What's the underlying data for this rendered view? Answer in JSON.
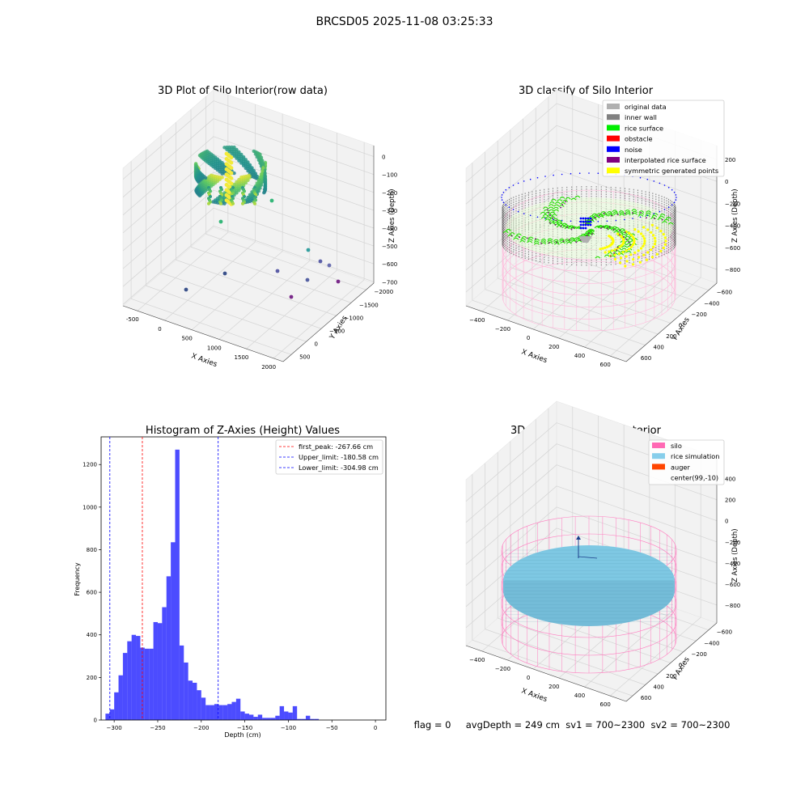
{
  "suptitle": "BRCSD05 2025-11-08 03:25:33",
  "panels": {
    "raw": {
      "title": "3D Plot of Silo Interior(row data)",
      "x_label": "X Axies",
      "y_label": "Y Axies",
      "z_label": "Z Axies (Depth)",
      "x_ticks": [
        "-500",
        "0",
        "500",
        "1000",
        "1500",
        "2000"
      ],
      "y_ticks": [
        "500",
        "0",
        "−500",
        "−1000",
        "−1500",
        "−2000"
      ],
      "z_ticks": [
        "0",
        "−100",
        "−200",
        "−300",
        "−400",
        "−500",
        "−600",
        "−700"
      ]
    },
    "classify": {
      "title": "3D classify of Silo Interior",
      "x_label": "X Axies",
      "y_label": "Y Axies",
      "z_label": "Z Axies (Depth)",
      "x_ticks": [
        "−400",
        "−200",
        "0",
        "200",
        "400",
        "600"
      ],
      "y_ticks": [
        "600",
        "400",
        "200",
        "0",
        "−200",
        "−400",
        "−600"
      ],
      "z_ticks": [
        "200",
        "0",
        "−200",
        "−400",
        "−600",
        "−800"
      ],
      "legend": [
        {
          "label": "original data",
          "color": "#b0b0b0"
        },
        {
          "label": "inner wall",
          "color": "#808080"
        },
        {
          "label": "rice surface",
          "color": "#00ee00"
        },
        {
          "label": "obstacle",
          "color": "#ff0000"
        },
        {
          "label": "noise",
          "color": "#0000ff"
        },
        {
          "label": "interpolated rice surface",
          "color": "#800080"
        },
        {
          "label": "symmetric generated points",
          "color": "#ffff00"
        }
      ]
    },
    "simulation": {
      "title": "3D simulation of Silo Interior",
      "x_label": "X Axies",
      "y_label": "Y Axies",
      "z_label": "Z Axies (Depth)",
      "x_ticks": [
        "−400",
        "−200",
        "0",
        "200",
        "400",
        "600"
      ],
      "y_ticks": [
        "600",
        "400",
        "200",
        "0",
        "−200",
        "−400",
        "−600"
      ],
      "z_ticks": [
        "400",
        "200",
        "0",
        "−200",
        "−400",
        "−600",
        "−800"
      ],
      "legend": [
        {
          "label": "silo",
          "color": "#ff69b4"
        },
        {
          "label": "rice simulation",
          "color": "#87ceeb"
        },
        {
          "label": "auger",
          "color": "#ff4500"
        },
        {
          "label": "center(99,-10)",
          "color": "none"
        }
      ],
      "status": "flag = 0     avgDepth = 249 cm  sv1 = 700~2300  sv2 = 700~2300"
    }
  },
  "chart_data": [
    {
      "type": "scatter",
      "title": "3D Plot of Silo Interior(row data)",
      "xlabel": "X Axies",
      "ylabel": "Y Axies",
      "zlabel": "Z Axies (Depth)",
      "xlim": [
        -600,
        2200
      ],
      "ylim": [
        -2000,
        600
      ],
      "zlim": [
        -750,
        0
      ],
      "colormap": "viridis",
      "notes_series": [
        {
          "name": "",
          "shape": "ring of points",
          "x_range": [
            -300,
            500
          ],
          "y_range": [
            -300,
            500
          ],
          "z_range": [
            -300,
            -100
          ]
        }
      ],
      "outlier_points": [
        {
          "x": -500,
          "y": -600,
          "z": -700
        },
        {
          "x": 900,
          "y": 200,
          "z": -650
        },
        {
          "x": 1600,
          "y": 300,
          "z": -600
        },
        {
          "x": 2000,
          "y": 350,
          "z": -600
        },
        {
          "x": 1700,
          "y": -100,
          "z": -650
        },
        {
          "x": 1500,
          "y": -800,
          "z": -680
        },
        {
          "x": 2150,
          "y": 200,
          "z": -650
        }
      ]
    },
    {
      "type": "scatter",
      "title": "3D classify of Silo Interior",
      "xlabel": "X Axies",
      "ylabel": "Y Axies",
      "zlabel": "Z Axies (Depth)",
      "xlim": [
        -500,
        700
      ],
      "ylim": [
        -700,
        700
      ],
      "zlim": [
        -900,
        300
      ],
      "series": [
        {
          "name": "original data"
        },
        {
          "name": "inner wall"
        },
        {
          "name": "rice surface"
        },
        {
          "name": "obstacle"
        },
        {
          "name": "noise"
        },
        {
          "name": "interpolated rice surface"
        },
        {
          "name": "symmetric generated points"
        }
      ]
    },
    {
      "type": "bar",
      "title": "Histogram of Z-Axies (Height) Values",
      "xlabel": "Depth (cm)",
      "ylabel": "Frequency",
      "xlim": [
        -315,
        12
      ],
      "ylim": [
        0,
        1330
      ],
      "x_ticks": [
        -300,
        -250,
        -200,
        -150,
        -100,
        -50,
        0
      ],
      "y_ticks": [
        0,
        200,
        400,
        600,
        800,
        1000,
        1200
      ],
      "bin_start": -310,
      "bin_width": 5,
      "values": [
        30,
        50,
        130,
        210,
        315,
        370,
        400,
        395,
        340,
        335,
        335,
        460,
        455,
        530,
        675,
        835,
        1270,
        350,
        270,
        185,
        175,
        140,
        105,
        70,
        70,
        75,
        70,
        70,
        75,
        85,
        100,
        40,
        30,
        25,
        15,
        25,
        10,
        10,
        10,
        20,
        65,
        40,
        35,
        65,
        5,
        5,
        20,
        5,
        5
      ],
      "vlines": [
        {
          "name": "first_peak: -267.66 cm",
          "x": -267.66,
          "color": "#ff0000"
        },
        {
          "name": "Upper_limit: -180.58 cm",
          "x": -180.58,
          "color": "#0000ff"
        },
        {
          "name": "Lower_limit: -304.98 cm",
          "x": -304.98,
          "color": "#0000ff"
        }
      ],
      "bar_color": "#0000ff"
    },
    {
      "type": "surface",
      "title": "3D simulation of Silo Interior",
      "xlabel": "X Axies",
      "ylabel": "Y Axies",
      "zlabel": "Z Axies (Depth)",
      "xlim": [
        -500,
        700
      ],
      "ylim": [
        -700,
        700
      ],
      "zlim": [
        -900,
        500
      ],
      "series": [
        {
          "name": "silo"
        },
        {
          "name": "rice simulation"
        },
        {
          "name": "auger"
        },
        {
          "name": "center(99,-10)"
        }
      ]
    }
  ]
}
